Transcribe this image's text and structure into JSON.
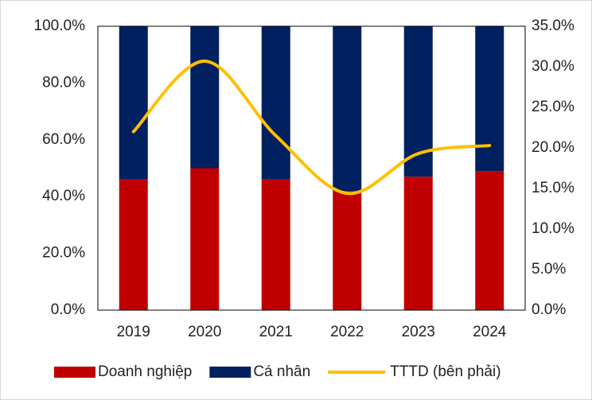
{
  "chart_data": {
    "type": "bar",
    "categories": [
      "2019",
      "2020",
      "2021",
      "2022",
      "2023",
      "2024"
    ],
    "stacked": true,
    "series": [
      {
        "name": "Doanh nghiệp",
        "color": "#c00000",
        "values": [
          46,
          50,
          46,
          42,
          47,
          49
        ]
      },
      {
        "name": "Cá nhân",
        "color": "#002060",
        "values": [
          54,
          50,
          54,
          58,
          53,
          51
        ]
      },
      {
        "name": "TTTD (bên phải)",
        "color": "#ffc000",
        "type": "line",
        "axis": "y2",
        "smooth": true,
        "values": [
          22.0,
          30.7,
          21.5,
          14.4,
          19.3,
          20.3
        ]
      }
    ],
    "ylim": [
      0,
      100
    ],
    "yticks": [
      {
        "value": 0,
        "label": "0.0%"
      },
      {
        "value": 20,
        "label": "20.0%"
      },
      {
        "value": 40,
        "label": "40.0%"
      },
      {
        "value": 60,
        "label": "60.0%"
      },
      {
        "value": 80,
        "label": "80.0%"
      },
      {
        "value": 100,
        "label": "100.0%"
      }
    ],
    "y2lim": [
      0,
      35
    ],
    "y2ticks": [
      {
        "value": 0,
        "label": "0.0%"
      },
      {
        "value": 5,
        "label": "5.0%"
      },
      {
        "value": 10,
        "label": "10.0%"
      },
      {
        "value": 15,
        "label": "15.0%"
      },
      {
        "value": 20,
        "label": "20.0%"
      },
      {
        "value": 25,
        "label": "25.0%"
      },
      {
        "value": 30,
        "label": "30.0%"
      },
      {
        "value": 35,
        "label": "35.0%"
      }
    ],
    "grid": false,
    "legend": "bottom"
  }
}
